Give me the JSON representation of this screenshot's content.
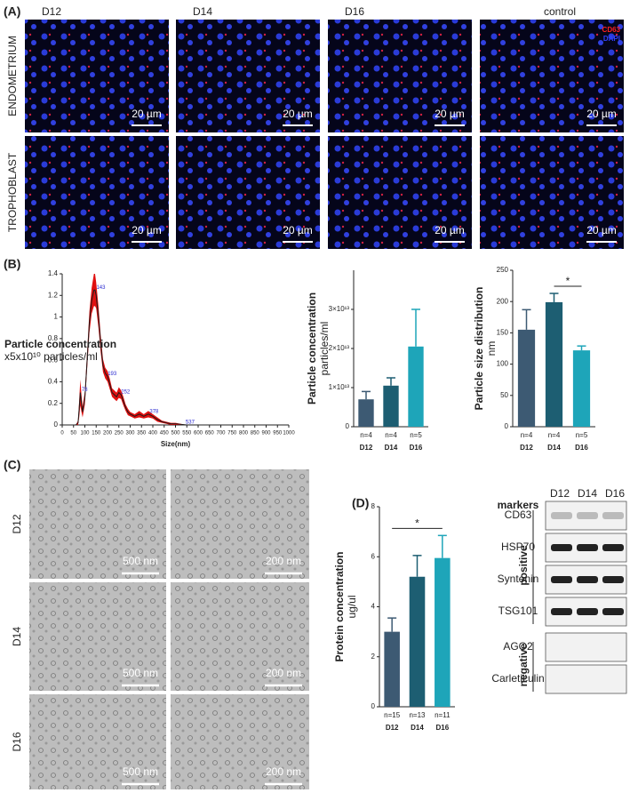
{
  "panel_labels": [
    "(A)",
    "(B)",
    "(C)",
    "(D)"
  ],
  "panel_a": {
    "columns": [
      "D12",
      "D14",
      "D16",
      "control"
    ],
    "rows": [
      "ENDOMETRIUM",
      "TROPHOBLAST"
    ],
    "legend": [
      "CD63",
      "DAPI"
    ],
    "scale_bar": "20 µm"
  },
  "panel_c": {
    "rows": [
      "D12",
      "D14",
      "D16"
    ],
    "scale_bars": [
      "500 nm",
      "200 nm"
    ]
  },
  "western_blot": {
    "header": "markers",
    "columns": [
      "D12",
      "D14",
      "D16"
    ],
    "groups": [
      {
        "name": "positive",
        "markers": [
          "CD63",
          "HSP70",
          "Syntenin",
          "TSG101"
        ]
      },
      {
        "name": "negative",
        "markers": [
          "AGO2",
          "Carleticulin"
        ]
      }
    ]
  },
  "chart_data": [
    {
      "type": "line",
      "title": "Particle concentration",
      "y_label": "x5x10¹⁰ particles/ml",
      "x_label": "Size(nm)",
      "x": [
        50,
        60,
        70,
        75,
        80,
        85,
        90,
        100,
        110,
        120,
        130,
        140,
        145,
        150,
        160,
        170,
        180,
        190,
        200,
        210,
        220,
        230,
        240,
        250,
        260,
        270,
        280,
        290,
        300,
        320,
        340,
        360,
        380,
        400,
        420,
        440,
        460,
        480,
        500,
        550,
        600
      ],
      "values": [
        0,
        0,
        0.02,
        0.15,
        0.3,
        0.2,
        0.12,
        0.25,
        0.6,
        0.95,
        1.15,
        1.25,
        1.25,
        1.2,
        1.0,
        0.75,
        0.55,
        0.48,
        0.45,
        0.38,
        0.3,
        0.28,
        0.26,
        0.3,
        0.28,
        0.22,
        0.16,
        0.12,
        0.1,
        0.08,
        0.1,
        0.08,
        0.1,
        0.08,
        0.05,
        0.03,
        0.02,
        0.01,
        0.01,
        0,
        0
      ],
      "errors": [
        0,
        0,
        0.02,
        0.08,
        0.12,
        0.08,
        0.05,
        0.06,
        0.08,
        0.1,
        0.12,
        0.15,
        0.15,
        0.12,
        0.1,
        0.08,
        0.06,
        0.05,
        0.05,
        0.05,
        0.04,
        0.04,
        0.04,
        0.05,
        0.04,
        0.04,
        0.03,
        0.03,
        0.02,
        0.02,
        0.03,
        0.02,
        0.03,
        0.02,
        0.02,
        0.01,
        0.01,
        0.01,
        0.01,
        0,
        0
      ],
      "color": "#1a1a1a",
      "error_color": "#e01010",
      "annotations": [
        {
          "x": 78,
          "label": "78"
        },
        {
          "x": 143,
          "label": "143"
        },
        {
          "x": 193,
          "label": "193"
        },
        {
          "x": 252,
          "label": "252"
        },
        {
          "x": 378,
          "label": "378"
        },
        {
          "x": 537,
          "label": "537"
        }
      ],
      "xlim": [
        0,
        1000
      ],
      "xticks": [
        0,
        50,
        100,
        150,
        200,
        250,
        300,
        350,
        400,
        450,
        500,
        550,
        600,
        650,
        700,
        750,
        800,
        850,
        900,
        950,
        1000
      ],
      "ylim": [
        0,
        1.4
      ],
      "yticks": [
        0,
        0.2,
        0.4,
        0.6,
        0.8,
        1.0,
        1.2,
        1.4
      ]
    },
    {
      "type": "bar",
      "title": "Particle concentration",
      "y_label": "particles/ml",
      "categories": [
        "D12",
        "D14",
        "D16"
      ],
      "n_labels": [
        "n=4",
        "n=4",
        "n=5"
      ],
      "values": [
        7000000000000,
        10500000000000,
        20500000000000
      ],
      "errors": [
        2000000000000,
        2000000000000,
        9500000000000
      ],
      "colors": [
        "#3d5a73",
        "#1d5e72",
        "#1ea5b9"
      ],
      "ylim": [
        0,
        40000000000000
      ],
      "yticks": [
        0,
        {
          "value": 10000000000000,
          "label": "1×10¹³"
        },
        {
          "value": 20000000000000,
          "label": "2×10¹³"
        },
        {
          "value": 30000000000000,
          "label": "3×10¹³"
        }
      ]
    },
    {
      "type": "bar",
      "title": "Particle size distribution",
      "y_label": "nm",
      "categories": [
        "D12",
        "D14",
        "D16"
      ],
      "n_labels": [
        "n=4",
        "n=4",
        "n=5"
      ],
      "values": [
        155,
        199,
        122
      ],
      "errors": [
        32,
        14,
        7
      ],
      "colors": [
        "#3d5a73",
        "#1d5e72",
        "#1ea5b9"
      ],
      "significance": [
        {
          "categories": [
            "D14",
            "D16"
          ],
          "label": "*"
        }
      ],
      "ylim": [
        0,
        250
      ],
      "yticks": [
        0,
        50,
        100,
        150,
        200,
        250
      ]
    },
    {
      "type": "bar",
      "title": "Protein concentration",
      "y_label": "ug/ul",
      "categories": [
        "D12",
        "D14",
        "D16"
      ],
      "n_labels": [
        "n=15",
        "n=13",
        "n=11"
      ],
      "values": [
        3.0,
        5.2,
        5.95
      ],
      "errors": [
        0.55,
        0.85,
        0.9
      ],
      "colors": [
        "#3d5a73",
        "#1d5e72",
        "#1ea5b9"
      ],
      "significance": [
        {
          "categories": [
            "D12",
            "D16"
          ],
          "label": "*"
        }
      ],
      "ylim": [
        0,
        8
      ],
      "yticks": [
        0,
        2,
        4,
        6,
        8
      ]
    }
  ]
}
